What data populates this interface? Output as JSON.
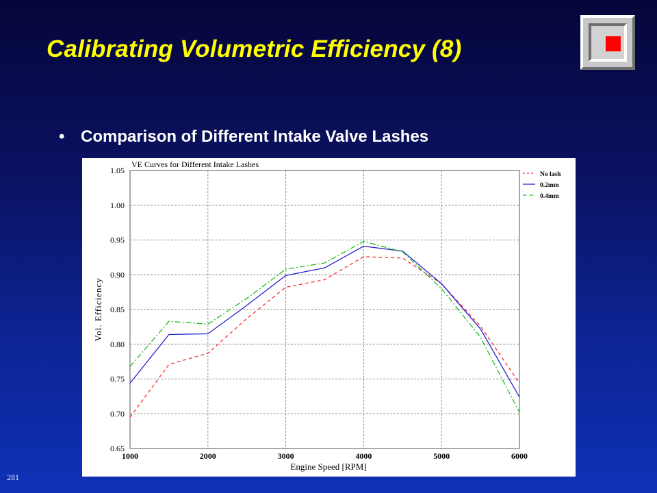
{
  "slide": {
    "title": "Calibrating Volumetric Efficiency (8)",
    "bullet_marker": "•",
    "bullet_text": "Comparison of Different Intake Valve Lashes",
    "page_number": "281"
  },
  "chart_data": {
    "type": "line",
    "title": "VE Curves for Different Intake Lashes",
    "xlabel": "Engine Speed [RPM]",
    "ylabel": "Vol. Efficiency",
    "xlim": [
      1000,
      6000
    ],
    "ylim": [
      0.65,
      1.05
    ],
    "xticks": [
      "1000",
      "2000",
      "3000",
      "4000",
      "5000",
      "6000"
    ],
    "yticks": [
      "0.65",
      "0.70",
      "0.75",
      "0.80",
      "0.85",
      "0.90",
      "0.95",
      "1.00",
      "1.05"
    ],
    "grid": true,
    "legend_position": "top-right",
    "x": [
      1000,
      1500,
      2000,
      2500,
      3000,
      3500,
      4000,
      4500,
      5000,
      5500,
      6000
    ],
    "series": [
      {
        "name": "No lash",
        "color": "#ff2a2a",
        "dash": "dashed",
        "values": [
          0.695,
          0.771,
          0.787,
          0.837,
          0.882,
          0.893,
          0.926,
          0.924,
          0.887,
          0.826,
          0.744
        ]
      },
      {
        "name": "0.2mm",
        "color": "#2222cc",
        "dash": "solid",
        "values": [
          0.744,
          0.814,
          0.815,
          0.856,
          0.899,
          0.91,
          0.941,
          0.934,
          0.887,
          0.822,
          0.724
        ]
      },
      {
        "name": "0.4mm",
        "color": "#22bb22",
        "dash": "dashdot",
        "values": [
          0.768,
          0.833,
          0.829,
          0.866,
          0.908,
          0.917,
          0.948,
          0.933,
          0.88,
          0.81,
          0.702
        ]
      }
    ]
  }
}
